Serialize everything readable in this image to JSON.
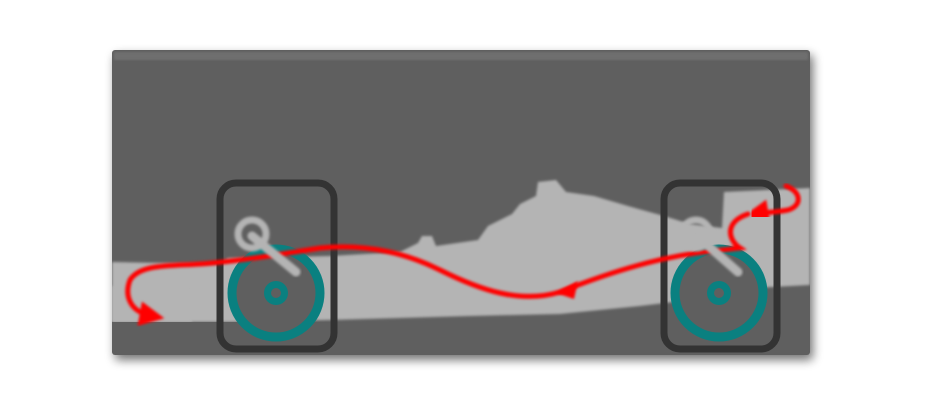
{
  "colors": {
    "page_background": "#ffffff",
    "panel_fill": "#5f5f5f",
    "panel_highlight": "#7a7a7a",
    "car_silhouette": "#b4b4b4",
    "airflow_arrow": "#ff0000",
    "wheel_teal": "#0a8080",
    "wheel_hub": "#5f5f5f",
    "suspension_link": "#b4b4b4",
    "wheel_frame": "#333333"
  },
  "diagram": {
    "subject": "race-car-side-silhouette",
    "wheels": [
      {
        "name": "front-wheel"
      },
      {
        "name": "rear-wheel"
      }
    ],
    "flow_arrows": [
      {
        "name": "underbody-airflow-arrow"
      },
      {
        "name": "rear-exit-arrow"
      }
    ]
  }
}
